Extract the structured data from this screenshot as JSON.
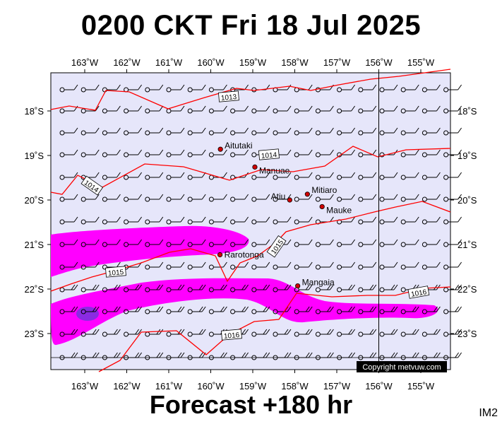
{
  "title": "0200 CKT Fri 18 Jul 2025",
  "footer": "Forecast +180 hr",
  "corner_label": "IM2",
  "copyright": "Copyright metvuw.com",
  "colors": {
    "map_background": "#e6e6fa",
    "isobar": "#ff0000",
    "rain_light": "#ff00ff",
    "rain_heavy": "#8a2be2",
    "wind_barb": "#000000"
  },
  "lon_labels": [
    "163˚W",
    "162˚W",
    "161˚W",
    "160˚W",
    "159˚W",
    "158˚W",
    "157˚W",
    "156˚W",
    "155˚W"
  ],
  "lat_labels": [
    "18˚S",
    "19˚S",
    "20˚S",
    "21˚S",
    "22˚S",
    "23˚S"
  ],
  "isobars": [
    {
      "label": "1013"
    },
    {
      "label": "1014"
    },
    {
      "label": "1014"
    },
    {
      "label": "1015"
    },
    {
      "label": "1015"
    },
    {
      "label": "1016"
    },
    {
      "label": "1016"
    }
  ],
  "places": [
    {
      "name": "Aitutaki",
      "lon": -159.77,
      "lat": -18.86
    },
    {
      "name": "Manuae",
      "lon": -158.95,
      "lat": -19.26
    },
    {
      "name": "Mitiaro",
      "lon": -157.7,
      "lat": -19.87
    },
    {
      "name": "Atiu",
      "lon": -158.12,
      "lat": -20.0
    },
    {
      "name": "Mauke",
      "lon": -157.35,
      "lat": -20.15
    },
    {
      "name": "Rarotonga",
      "lon": -159.78,
      "lat": -21.23
    },
    {
      "name": "Mangaia",
      "lon": -157.93,
      "lat": -21.93
    }
  ]
}
